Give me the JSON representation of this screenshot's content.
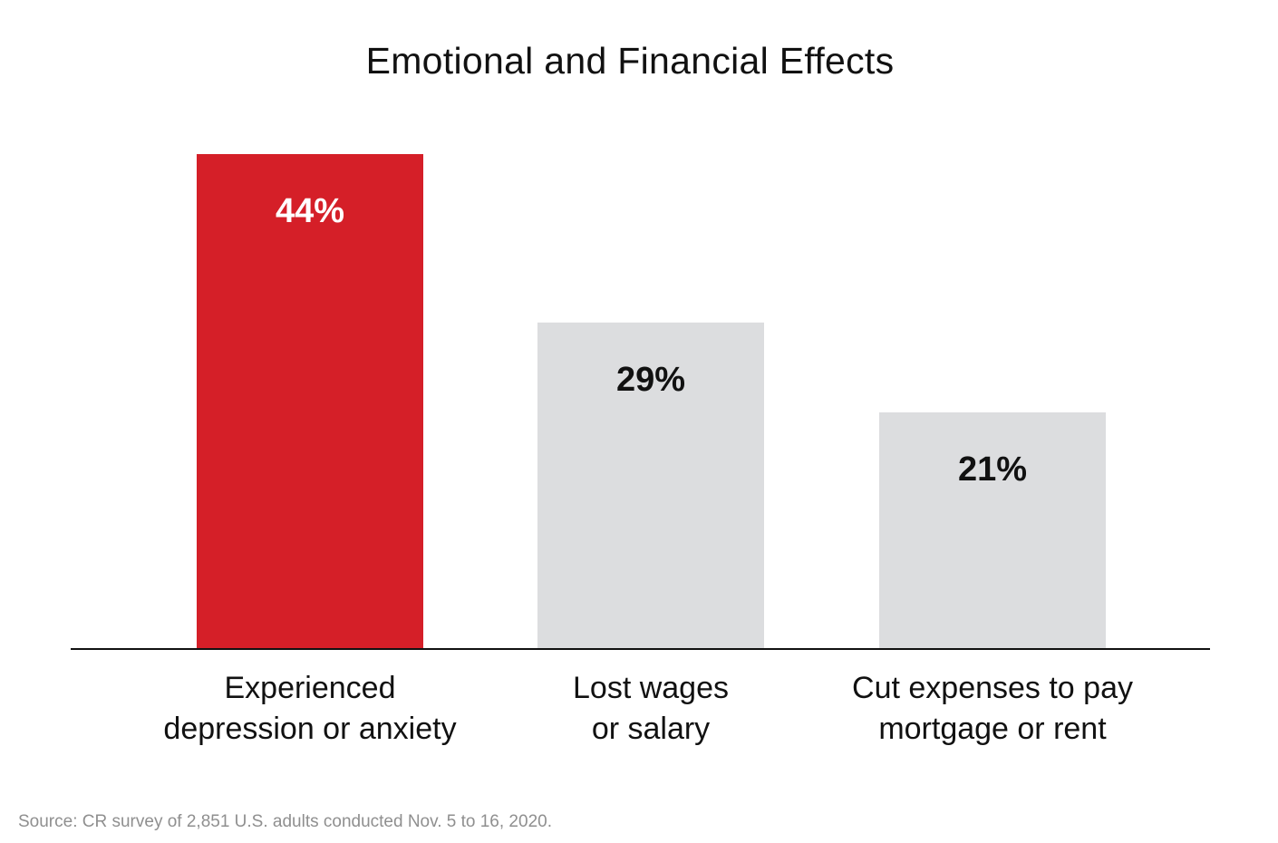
{
  "chart_data": {
    "type": "bar",
    "title": "Emotional and Financial Effects",
    "categories": [
      [
        "Experienced",
        "depression or anxiety"
      ],
      [
        "Lost wages",
        "or salary"
      ],
      [
        "Cut expenses to pay",
        "mortgage or rent"
      ]
    ],
    "values": [
      44,
      29,
      21
    ],
    "value_labels": [
      "44%",
      "29%",
      "21%"
    ],
    "unit": "%",
    "ylim": [
      0,
      44
    ],
    "grid": false,
    "highlight_index": 0,
    "colors": {
      "highlight_bar": "#d51f28",
      "default_bar": "#dcdddf",
      "highlight_label": "#ffffff",
      "default_label": "#111111",
      "baseline": "#111111"
    },
    "source": "Source: CR survey of 2,851 U.S. adults conducted Nov. 5 to 16, 2020."
  }
}
